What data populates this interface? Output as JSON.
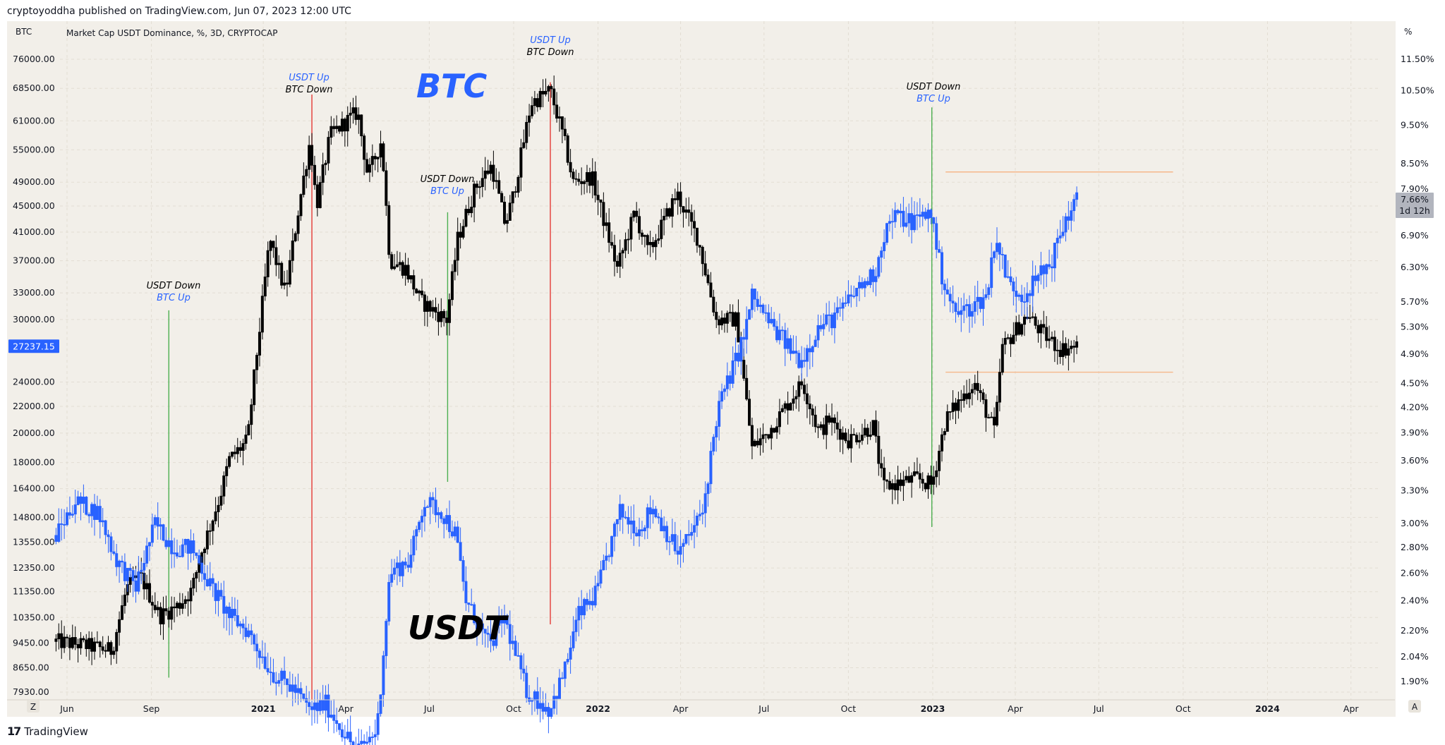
{
  "header": {
    "published": "cryptoyoddha published on TradingView.com, Jun 07, 2023 12:00 UTC",
    "left_symbol": "BTC",
    "series_legend": "Market Cap USDT Dominance, %, 3D, CRYPTOCAP",
    "right_unit": "%"
  },
  "footer": {
    "brand": "TradingView",
    "brand_mark": "17",
    "z_button": "Z",
    "a_button": "A"
  },
  "colors": {
    "background": "#f2efe9",
    "btc": "#000000",
    "usdt_up": "#2962ff",
    "usdt_down": "#2962ff",
    "red_line": "#e53935",
    "green_line": "#4caf50",
    "orange_line": "#f5b78a"
  },
  "watermarks": {
    "btc": "BTC",
    "usdt": "USDT"
  },
  "annotations": [
    {
      "id": "a1",
      "line1": "USDT Down",
      "line2": "BTC Up",
      "line1_color": "black",
      "line2_color": "blue"
    },
    {
      "id": "a2",
      "line1": "USDT Up",
      "line2": "BTC Down",
      "line1_color": "blue",
      "line2_color": "black"
    },
    {
      "id": "a3",
      "line1": "USDT Down",
      "line2": "BTC Up",
      "line1_color": "black",
      "line2_color": "blue"
    },
    {
      "id": "a4",
      "line1": "USDT Up",
      "line2": "BTC Down",
      "line1_color": "blue",
      "line2_color": "black"
    },
    {
      "id": "a5",
      "line1": "USDT Down",
      "line2": "BTC Up",
      "line1_color": "black",
      "line2_color": "blue"
    }
  ],
  "chart_data": {
    "type": "candlestick",
    "title": "",
    "left_axis": {
      "label": "BTC",
      "ticks": [
        "76000.00",
        "68500.00",
        "61000.00",
        "55000.00",
        "49000.00",
        "45000.00",
        "41000.00",
        "37000.00",
        "33000.00",
        "30000.00",
        "24000.00",
        "22000.00",
        "20000.00",
        "18000.00",
        "16400.00",
        "14800.00",
        "13550.00",
        "12350.00",
        "11350.00",
        "10350.00",
        "9450.00",
        "8650.00",
        "7930.00"
      ],
      "last_price_label": "27237.15",
      "last_price": 27237.15
    },
    "right_axis": {
      "label": "%",
      "ticks": [
        "11.50%",
        "10.50%",
        "9.50%",
        "8.50%",
        "7.90%",
        "6.90%",
        "6.30%",
        "5.70%",
        "5.30%",
        "4.90%",
        "4.50%",
        "4.20%",
        "3.90%",
        "3.60%",
        "3.30%",
        "3.00%",
        "2.80%",
        "2.60%",
        "2.40%",
        "2.20%",
        "2.04%",
        "1.90%"
      ],
      "last_value_label": "7.66%",
      "countdown_label": "1d 12h",
      "last_value": 7.66
    },
    "x_axis": {
      "ticks": [
        "Jun",
        "Sep",
        "2021",
        "Apr",
        "Jul",
        "Oct",
        "2022",
        "Apr",
        "Jul",
        "Oct",
        "2023",
        "Apr",
        "Jul",
        "Oct",
        "2024",
        "Apr"
      ],
      "bold": [
        "2021",
        "2022",
        "2023",
        "2024"
      ]
    },
    "series": [
      {
        "name": "BTC",
        "axis": "left",
        "color": "#000000",
        "interval": "3D",
        "anchors": [
          [
            "2020-05-20",
            9500
          ],
          [
            "2020-06-15",
            9400
          ],
          [
            "2020-07-20",
            9200
          ],
          [
            "2020-08-05",
            11500
          ],
          [
            "2020-08-20",
            12000
          ],
          [
            "2020-09-10",
            10400
          ],
          [
            "2020-09-30",
            10800
          ],
          [
            "2020-10-15",
            11400
          ],
          [
            "2020-10-25",
            13000
          ],
          [
            "2020-11-15",
            16000
          ],
          [
            "2020-11-25",
            18200
          ],
          [
            "2020-12-15",
            19500
          ],
          [
            "2020-12-20",
            23000
          ],
          [
            "2021-01-08",
            40000
          ],
          [
            "2021-01-25",
            33000
          ],
          [
            "2021-02-10",
            46000
          ],
          [
            "2021-02-21",
            57000
          ],
          [
            "2021-02-28",
            45000
          ],
          [
            "2021-03-15",
            58000
          ],
          [
            "2021-04-14",
            63000
          ],
          [
            "2021-04-25",
            50000
          ],
          [
            "2021-05-10",
            57000
          ],
          [
            "2021-05-19",
            37000
          ],
          [
            "2021-06-05",
            36000
          ],
          [
            "2021-06-22",
            32000
          ],
          [
            "2021-07-20",
            30000
          ],
          [
            "2021-08-01",
            40000
          ],
          [
            "2021-08-20",
            48000
          ],
          [
            "2021-09-07",
            52000
          ],
          [
            "2021-09-22",
            42000
          ],
          [
            "2021-10-01",
            47000
          ],
          [
            "2021-10-20",
            65000
          ],
          [
            "2021-11-10",
            68000
          ],
          [
            "2021-11-25",
            57000
          ],
          [
            "2021-12-05",
            49000
          ],
          [
            "2021-12-25",
            50000
          ],
          [
            "2022-01-22",
            36000
          ],
          [
            "2022-02-10",
            44000
          ],
          [
            "2022-02-25",
            38000
          ],
          [
            "2022-03-28",
            47000
          ],
          [
            "2022-04-20",
            40000
          ],
          [
            "2022-05-10",
            30000
          ],
          [
            "2022-06-01",
            30000
          ],
          [
            "2022-06-18",
            19000
          ],
          [
            "2022-07-05",
            20000
          ],
          [
            "2022-08-12",
            24000
          ],
          [
            "2022-08-30",
            20000
          ],
          [
            "2022-09-10",
            21000
          ],
          [
            "2022-10-01",
            19500
          ],
          [
            "2022-10-28",
            20500
          ],
          [
            "2022-11-08",
            16500
          ],
          [
            "2022-12-15",
            17000
          ],
          [
            "2022-12-31",
            16600
          ],
          [
            "2023-01-15",
            21000
          ],
          [
            "2023-02-15",
            24000
          ],
          [
            "2023-03-10",
            20000
          ],
          [
            "2023-03-17",
            27000
          ],
          [
            "2023-04-14",
            30500
          ],
          [
            "2023-05-01",
            28500
          ],
          [
            "2023-05-20",
            27000
          ],
          [
            "2023-06-07",
            27237
          ]
        ]
      },
      {
        "name": "Market Cap USDT Dominance",
        "axis": "right",
        "color": "#2962ff",
        "interval": "3D",
        "anchors": [
          [
            "2020-05-20",
            2.9
          ],
          [
            "2020-06-10",
            3.2
          ],
          [
            "2020-07-05",
            3.1
          ],
          [
            "2020-07-25",
            2.7
          ],
          [
            "2020-08-15",
            2.5
          ],
          [
            "2020-09-05",
            3.0
          ],
          [
            "2020-09-25",
            2.8
          ],
          [
            "2020-10-15",
            2.8
          ],
          [
            "2020-11-05",
            2.5
          ],
          [
            "2020-11-25",
            2.3
          ],
          [
            "2020-12-15",
            2.2
          ],
          [
            "2020-12-25",
            2.1
          ],
          [
            "2021-01-10",
            1.95
          ],
          [
            "2021-02-05",
            1.85
          ],
          [
            "2021-02-20",
            1.75
          ],
          [
            "2021-03-10",
            1.78
          ],
          [
            "2021-04-13",
            1.55
          ],
          [
            "2021-05-05",
            1.65
          ],
          [
            "2021-05-19",
            2.6
          ],
          [
            "2021-06-10",
            2.7
          ],
          [
            "2021-06-25",
            3.2
          ],
          [
            "2021-07-15",
            3.1
          ],
          [
            "2021-07-30",
            2.9
          ],
          [
            "2021-08-10",
            2.4
          ],
          [
            "2021-09-05",
            2.1
          ],
          [
            "2021-09-20",
            2.3
          ],
          [
            "2021-10-15",
            1.85
          ],
          [
            "2021-11-09",
            1.75
          ],
          [
            "2021-11-25",
            1.95
          ],
          [
            "2021-12-10",
            2.3
          ],
          [
            "2021-12-30",
            2.45
          ],
          [
            "2022-01-25",
            3.1
          ],
          [
            "2022-02-15",
            2.95
          ],
          [
            "2022-03-01",
            3.15
          ],
          [
            "2022-03-30",
            2.75
          ],
          [
            "2022-04-25",
            3.1
          ],
          [
            "2022-05-12",
            4.2
          ],
          [
            "2022-05-25",
            4.6
          ],
          [
            "2022-06-10",
            5.2
          ],
          [
            "2022-06-18",
            5.8
          ],
          [
            "2022-07-10",
            5.3
          ],
          [
            "2022-08-10",
            4.8
          ],
          [
            "2022-08-30",
            5.3
          ],
          [
            "2022-09-20",
            5.5
          ],
          [
            "2022-10-10",
            5.9
          ],
          [
            "2022-10-30",
            6.2
          ],
          [
            "2022-11-10",
            7.0
          ],
          [
            "2022-11-20",
            7.3
          ],
          [
            "2022-12-10",
            7.2
          ],
          [
            "2022-12-30",
            7.4
          ],
          [
            "2023-01-10",
            6.2
          ],
          [
            "2023-01-25",
            5.5
          ],
          [
            "2023-02-10",
            5.6
          ],
          [
            "2023-03-01",
            5.8
          ],
          [
            "2023-03-10",
            6.9
          ],
          [
            "2023-03-25",
            6.0
          ],
          [
            "2023-04-10",
            5.8
          ],
          [
            "2023-04-25",
            6.1
          ],
          [
            "2023-05-10",
            6.4
          ],
          [
            "2023-05-25",
            7.2
          ],
          [
            "2023-06-07",
            7.66
          ]
        ]
      }
    ],
    "horizontal_lines": [
      {
        "axis": "right",
        "value": 8.3,
        "from": "2023-01-15",
        "to": "2023-09-20",
        "color": "#f5b78a"
      },
      {
        "axis": "right",
        "value": 4.65,
        "from": "2023-01-15",
        "to": "2023-09-20",
        "color": "#f5b78a"
      }
    ],
    "vertical_lines": [
      {
        "date": "2020-09-20",
        "from_btc": 31000,
        "to_btc": 8350,
        "color": "#4caf50"
      },
      {
        "date": "2021-02-23",
        "from_btc": 67000,
        "to_btc": 7700,
        "color": "#e53935"
      },
      {
        "date": "2021-07-21",
        "from_btc": 44000,
        "to_btc": 16800,
        "color": "#4caf50"
      },
      {
        "date": "2021-11-10",
        "from_btc": 70000,
        "to_btc": 10100,
        "color": "#e53935"
      },
      {
        "date": "2022-12-31",
        "from_btc": 64000,
        "to_btc": 14300,
        "color": "#4caf50"
      }
    ]
  }
}
